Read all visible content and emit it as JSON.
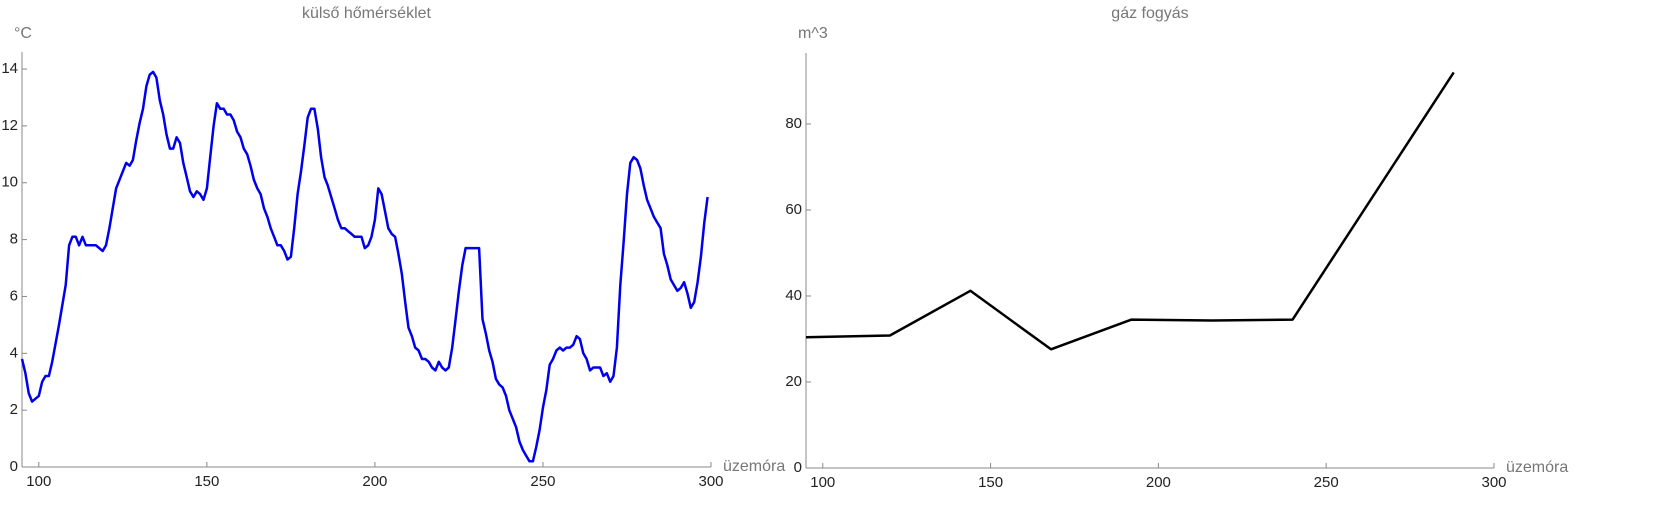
{
  "chart_data": [
    {
      "type": "line",
      "title": "külső hőmérséklet",
      "y_label": "°C",
      "x_label": "üzemóra",
      "color": "#0000ee",
      "xlim": [
        95,
        300
      ],
      "ylim": [
        0,
        14.6
      ],
      "xticks": [
        100,
        150,
        200,
        250,
        300
      ],
      "yticks": [
        0,
        2,
        4,
        6,
        8,
        10,
        12,
        14
      ],
      "x": [
        95,
        96,
        97,
        98,
        100,
        101,
        102,
        103,
        104,
        106,
        108,
        109,
        110,
        111,
        112,
        113,
        114,
        117,
        119,
        120,
        121,
        123,
        125,
        126,
        127,
        128,
        129,
        130,
        131,
        132,
        133,
        134,
        135,
        136,
        137,
        138,
        139,
        140,
        141,
        142,
        143,
        144,
        145,
        146,
        147,
        148,
        149,
        150,
        151,
        152,
        153,
        154,
        155,
        156,
        157,
        158,
        159,
        160,
        161,
        162,
        163,
        164,
        165,
        166,
        167,
        168,
        169,
        170,
        171,
        172,
        173,
        174,
        175,
        176,
        177,
        178,
        179,
        180,
        181,
        182,
        183,
        184,
        185,
        186,
        187,
        188,
        189,
        190,
        191,
        192,
        193,
        194,
        195,
        196,
        197,
        198,
        199,
        200,
        201,
        202,
        203,
        204,
        205,
        206,
        207,
        208,
        209,
        210,
        211,
        212,
        213,
        214,
        215,
        216,
        217,
        218,
        219,
        220,
        221,
        222,
        223,
        224,
        225,
        226,
        227,
        231,
        232,
        233,
        234,
        235,
        236,
        237,
        238,
        239,
        240,
        241,
        242,
        243,
        244,
        245,
        246,
        247,
        248,
        249,
        250,
        251,
        252,
        253,
        254,
        255,
        256,
        257,
        258,
        259,
        260,
        261,
        262,
        263,
        264,
        265,
        267,
        268,
        269,
        270,
        271,
        272,
        273,
        274,
        275,
        276,
        277,
        278,
        279,
        280,
        281,
        282,
        283,
        284,
        285,
        286,
        287,
        288,
        289,
        290,
        291,
        292,
        293,
        294,
        295,
        296,
        297,
        298,
        299
      ],
      "values": [
        3.8,
        3.3,
        2.6,
        2.3,
        2.5,
        3.0,
        3.2,
        3.2,
        3.7,
        5.0,
        6.4,
        7.8,
        8.1,
        8.1,
        7.8,
        8.1,
        7.8,
        7.8,
        7.6,
        7.8,
        8.4,
        9.8,
        10.4,
        10.7,
        10.6,
        10.8,
        11.5,
        12.1,
        12.6,
        13.4,
        13.8,
        13.9,
        13.7,
        12.9,
        12.4,
        11.7,
        11.2,
        11.2,
        11.6,
        11.4,
        10.7,
        10.2,
        9.7,
        9.5,
        9.7,
        9.6,
        9.4,
        9.8,
        10.9,
        12.0,
        12.8,
        12.6,
        12.6,
        12.4,
        12.4,
        12.2,
        11.8,
        11.6,
        11.2,
        11.0,
        10.6,
        10.1,
        9.8,
        9.6,
        9.1,
        8.8,
        8.4,
        8.1,
        7.8,
        7.8,
        7.6,
        7.3,
        7.4,
        8.4,
        9.6,
        10.4,
        11.3,
        12.3,
        12.6,
        12.6,
        11.9,
        10.9,
        10.2,
        9.9,
        9.5,
        9.1,
        8.7,
        8.4,
        8.4,
        8.3,
        8.2,
        8.1,
        8.1,
        8.1,
        7.7,
        7.8,
        8.1,
        8.7,
        9.8,
        9.6,
        9.0,
        8.4,
        8.2,
        8.1,
        7.5,
        6.8,
        5.8,
        4.9,
        4.6,
        4.2,
        4.1,
        3.8,
        3.8,
        3.7,
        3.5,
        3.4,
        3.7,
        3.5,
        3.4,
        3.5,
        4.2,
        5.2,
        6.2,
        7.1,
        7.7,
        7.7,
        5.2,
        4.7,
        4.1,
        3.7,
        3.1,
        2.9,
        2.8,
        2.5,
        2.0,
        1.7,
        1.4,
        0.9,
        0.6,
        0.4,
        0.2,
        0.2,
        0.7,
        1.3,
        2.1,
        2.7,
        3.6,
        3.8,
        4.1,
        4.2,
        4.1,
        4.2,
        4.2,
        4.3,
        4.6,
        4.5,
        4.0,
        3.8,
        3.4,
        3.5,
        3.5,
        3.2,
        3.3,
        3.0,
        3.2,
        4.2,
        6.4,
        7.9,
        9.6,
        10.7,
        10.9,
        10.8,
        10.5,
        9.9,
        9.4,
        9.1,
        8.8,
        8.6,
        8.4,
        7.5,
        7.1,
        6.6,
        6.4,
        6.2,
        6.3,
        6.5,
        6.1,
        5.6,
        5.8,
        6.5,
        7.4,
        8.6,
        9.5
      ]
    },
    {
      "type": "line",
      "title": "gáz fogyás",
      "y_label": "m^3",
      "x_label": "üzemóra",
      "color": "#000000",
      "xlim": [
        95,
        300
      ],
      "ylim": [
        0,
        96.5
      ],
      "xticks": [
        100,
        150,
        200,
        250,
        300
      ],
      "yticks": [
        0,
        20,
        40,
        60,
        80
      ],
      "x": [
        95,
        120,
        144,
        168,
        192,
        216,
        240,
        288
      ],
      "values": [
        30.4,
        30.8,
        41.2,
        27.6,
        34.5,
        34.3,
        34.5,
        92
      ]
    }
  ]
}
